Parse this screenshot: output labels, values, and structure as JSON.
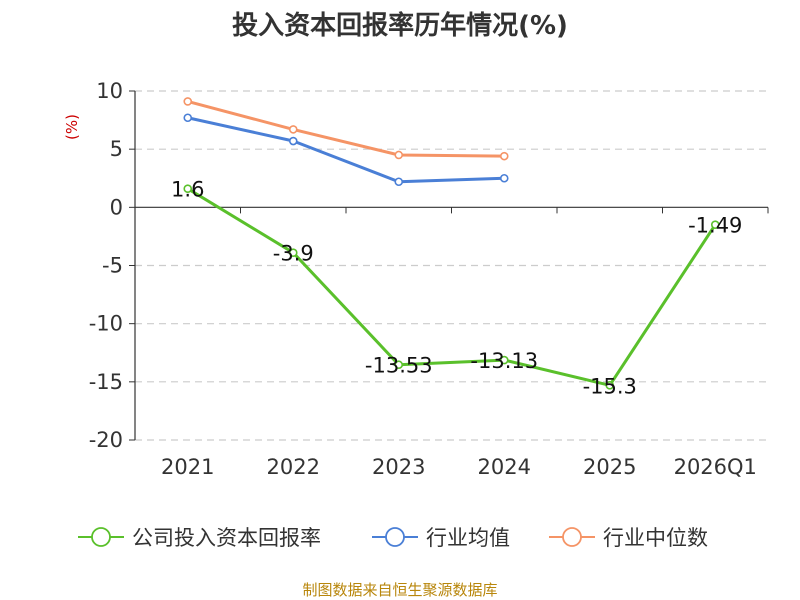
{
  "chart_data": {
    "type": "line",
    "title": "投入资本回报率历年情况(%)",
    "ylabel": "(%)",
    "categories": [
      "2021",
      "2022",
      "2023",
      "2024",
      "2025",
      "2026Q1"
    ],
    "ylim": [
      -20,
      10
    ],
    "yticks": [
      10,
      5,
      0,
      -5,
      -10,
      -15,
      -20
    ],
    "grid": true,
    "legend_position": "bottom",
    "series": [
      {
        "name": "公司投入资本回报率",
        "color": "#5ac02b",
        "values": [
          1.6,
          -3.9,
          -13.53,
          -13.13,
          -15.3,
          -1.49
        ],
        "labels": [
          "1.6",
          "-3.9",
          "-13.53",
          "-13.13",
          "-15.3",
          "-1.49"
        ]
      },
      {
        "name": "行业均值",
        "color": "#4a7fd6",
        "values": [
          7.7,
          5.7,
          2.2,
          2.5,
          null,
          null
        ]
      },
      {
        "name": "行业中位数",
        "color": "#f59466",
        "values": [
          9.1,
          6.7,
          4.5,
          4.4,
          null,
          null
        ]
      }
    ]
  },
  "source": "制图数据来自恒生聚源数据库"
}
